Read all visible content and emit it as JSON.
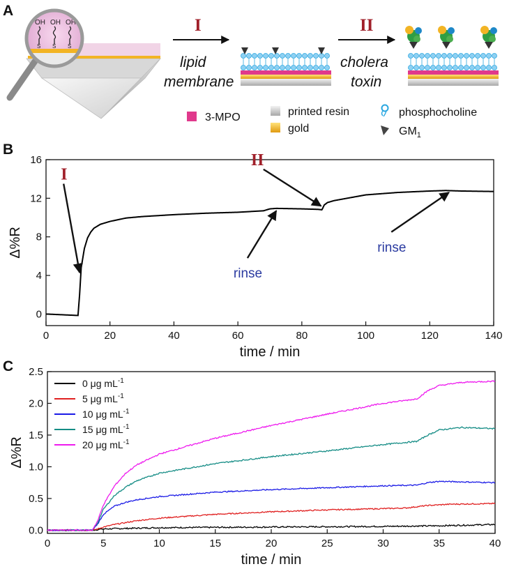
{
  "panels": {
    "a": "A",
    "b": "B",
    "c": "C"
  },
  "schematic": {
    "step1": "I",
    "step1_line1": "lipid",
    "step1_line2": "membrane",
    "step2": "II",
    "step2_line1": "cholera",
    "step2_line2": "toxin",
    "molecule_oh": "OH",
    "molecule_s": "S",
    "legend": [
      {
        "label": "3-MPO",
        "color": "#e0398c"
      },
      {
        "label": "printed resin",
        "color": "#c8c8c8"
      },
      {
        "label": "gold",
        "color": "#f2b424"
      },
      {
        "label": "phosphocholine",
        "color": "#2aa7e0"
      },
      {
        "label_main": "GM",
        "label_sub": "1",
        "color": "#333333"
      }
    ]
  },
  "colors": {
    "trace": "#000000",
    "roman": "#a0202a",
    "rinse": "#2a3aa0"
  },
  "chart_data": [
    {
      "type": "line",
      "xlabel": "time / min",
      "ylabel": "Δ%R",
      "xlim": [
        0,
        140
      ],
      "ylim": [
        -1.2,
        16
      ],
      "xticks": [
        0,
        20,
        40,
        60,
        80,
        100,
        120,
        140
      ],
      "yticks": [
        0,
        4,
        8,
        12,
        16
      ],
      "series": [
        {
          "x": [
            0,
            10,
            10.5,
            11,
            12,
            13,
            14,
            15,
            17,
            20,
            25,
            30,
            40,
            50,
            60,
            68,
            70,
            72,
            80,
            85,
            86.3,
            87,
            88,
            90,
            95,
            100,
            110,
            120,
            125,
            130,
            140
          ],
          "y": [
            0,
            -0.15,
            2.0,
            4.8,
            6.8,
            7.9,
            8.5,
            8.9,
            9.3,
            9.6,
            9.95,
            10.1,
            10.3,
            10.45,
            10.55,
            10.7,
            10.9,
            10.95,
            10.9,
            10.85,
            10.8,
            11.3,
            11.55,
            11.75,
            12.05,
            12.35,
            12.6,
            12.75,
            12.8,
            12.75,
            12.7
          ]
        }
      ],
      "annotations": [
        {
          "text": "I",
          "x_tail": 5.5,
          "y_tail": 13.5,
          "x_head": 10.5,
          "y_head": 4.3
        },
        {
          "text": "II",
          "x_tail": 68,
          "y_tail": 15.0,
          "x_head": 86,
          "y_head": 11.2
        },
        {
          "text": "rinse",
          "x_tail": 63,
          "y_tail": 5.8,
          "x_head": 72,
          "y_head": 10.7
        },
        {
          "text": "rinse",
          "x_tail": 108,
          "y_tail": 8.5,
          "x_head": 126,
          "y_head": 12.6
        }
      ]
    },
    {
      "type": "line",
      "xlabel": "time / min",
      "ylabel": "Δ%R",
      "xlim": [
        0,
        40
      ],
      "ylim": [
        -0.05,
        2.5
      ],
      "xticks": [
        0,
        5,
        10,
        15,
        20,
        25,
        30,
        35,
        40
      ],
      "yticks": [
        0.0,
        0.5,
        1.0,
        1.5,
        2.0,
        2.5
      ],
      "ytick_labels": [
        "0.0",
        "0.5",
        "1.0",
        "1.5",
        "2.0",
        "2.5"
      ],
      "legend_position": "top-left",
      "series": [
        {
          "name_main": "0 μg mL",
          "name_sup": "-1",
          "color": "#000000",
          "x": [
            0,
            4,
            5,
            10,
            20,
            30,
            35,
            40
          ],
          "y": [
            0.0,
            0.0,
            0.02,
            0.04,
            0.05,
            0.06,
            0.07,
            0.09
          ]
        },
        {
          "name_main": "5 μg mL",
          "name_sup": "-1",
          "color": "#e02020",
          "x": [
            0,
            4,
            4.5,
            5,
            6,
            8,
            10,
            15,
            20,
            25,
            30,
            32,
            34,
            36,
            40
          ],
          "y": [
            0.0,
            0.0,
            0.02,
            0.05,
            0.09,
            0.15,
            0.19,
            0.25,
            0.29,
            0.32,
            0.34,
            0.35,
            0.39,
            0.41,
            0.42
          ]
        },
        {
          "name_main": "10 μg mL",
          "name_sup": "-1",
          "color": "#1a1ae6",
          "x": [
            0,
            4,
            4.5,
            5,
            6,
            7,
            8,
            10,
            15,
            20,
            25,
            30,
            33,
            34,
            35,
            40
          ],
          "y": [
            0.0,
            0.0,
            0.1,
            0.25,
            0.38,
            0.44,
            0.48,
            0.53,
            0.6,
            0.64,
            0.67,
            0.7,
            0.71,
            0.75,
            0.77,
            0.75
          ]
        },
        {
          "name_main": "15 μg mL",
          "name_sup": "-1",
          "color": "#148c85",
          "x": [
            0,
            4,
            4.5,
            5,
            6,
            7,
            8,
            10,
            15,
            20,
            25,
            30,
            33,
            34,
            35,
            37,
            40
          ],
          "y": [
            0.0,
            0.0,
            0.12,
            0.33,
            0.55,
            0.68,
            0.78,
            0.9,
            1.05,
            1.16,
            1.25,
            1.35,
            1.4,
            1.5,
            1.58,
            1.62,
            1.6
          ]
        },
        {
          "name_main": "20 μg mL",
          "name_sup": "-1",
          "color": "#ee1aee",
          "x": [
            0,
            4,
            4.5,
            5,
            6,
            7,
            8,
            10,
            15,
            20,
            25,
            30,
            33,
            34,
            35,
            37,
            40
          ],
          "y": [
            0.0,
            0.0,
            0.15,
            0.4,
            0.7,
            0.9,
            1.03,
            1.2,
            1.45,
            1.65,
            1.83,
            2.0,
            2.07,
            2.2,
            2.28,
            2.33,
            2.35
          ]
        }
      ]
    }
  ]
}
